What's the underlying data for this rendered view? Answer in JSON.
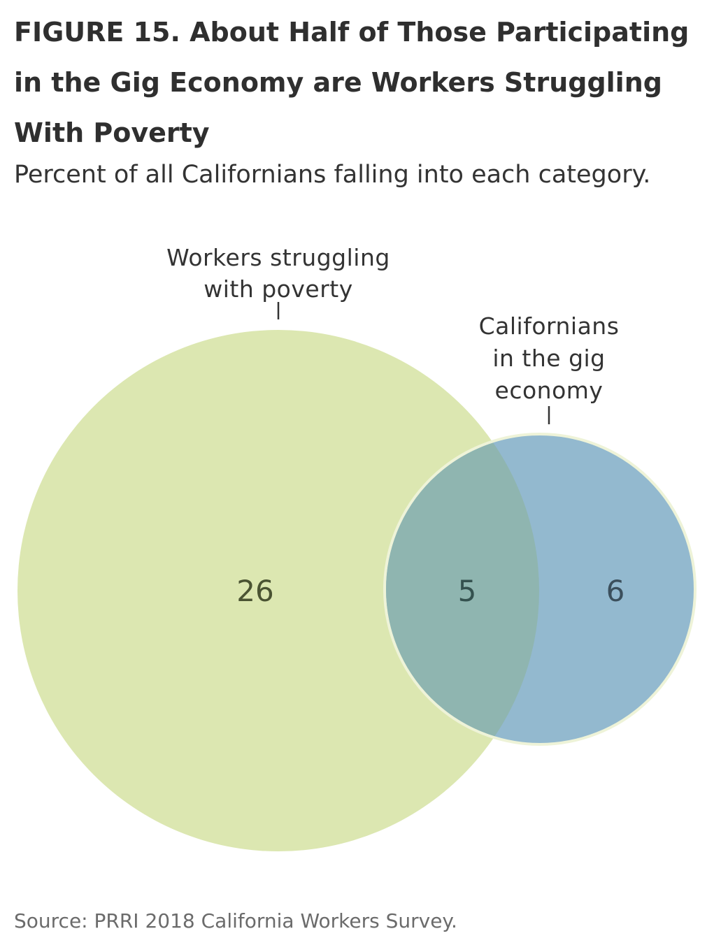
{
  "figure": {
    "title": "FIGURE 15.  About Half of Those Participating in the Gig Economy are Workers Struggling With Poverty",
    "subtitle": "Percent of all Californians falling into each category.",
    "source": "Source: PRRI 2018 California Workers Survey."
  },
  "venn": {
    "sets": [
      {
        "name": "Workers struggling with poverty",
        "label_lines": [
          "Workers struggling",
          "with poverty"
        ],
        "only_value": "26",
        "color": "#dce7b1"
      },
      {
        "name": "Californians in the gig economy",
        "label_lines": [
          "Californians",
          "in the gig",
          "economy"
        ],
        "only_value": "6",
        "color": "#93b9cf"
      }
    ],
    "intersection_value": "5",
    "intersection_color": "#8fb5b0"
  }
}
